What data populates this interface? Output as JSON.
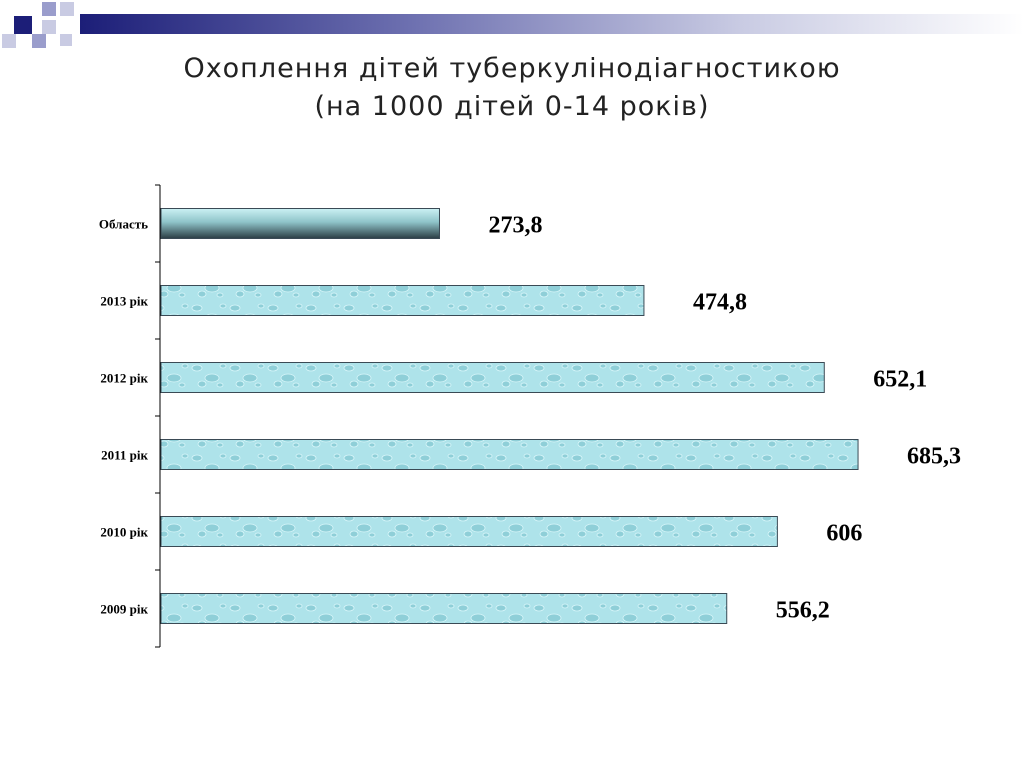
{
  "slide": {
    "title_line1": "Охоплення дітей туберкулінодіагностикою",
    "title_line2": "(на 1000 дітей 0-14 років)"
  },
  "colors": {
    "band_dark": "#1c1e78",
    "bar_fill": "#aee3ea",
    "bar_stroke": "#3a4a55"
  },
  "chart_data": {
    "type": "bar",
    "orientation": "horizontal",
    "categories": [
      "Область",
      "2013 рік",
      "2012 рік",
      "2011 рік",
      "2010 рік",
      "2009 рік"
    ],
    "values": [
      273.8,
      474.8,
      652.1,
      685.3,
      606,
      556.2
    ],
    "value_labels": [
      "273,8",
      "474,8",
      "652,1",
      "685,3",
      "606",
      "556,2"
    ],
    "xlim": [
      0,
      700
    ],
    "grid": false,
    "legend": "none"
  }
}
